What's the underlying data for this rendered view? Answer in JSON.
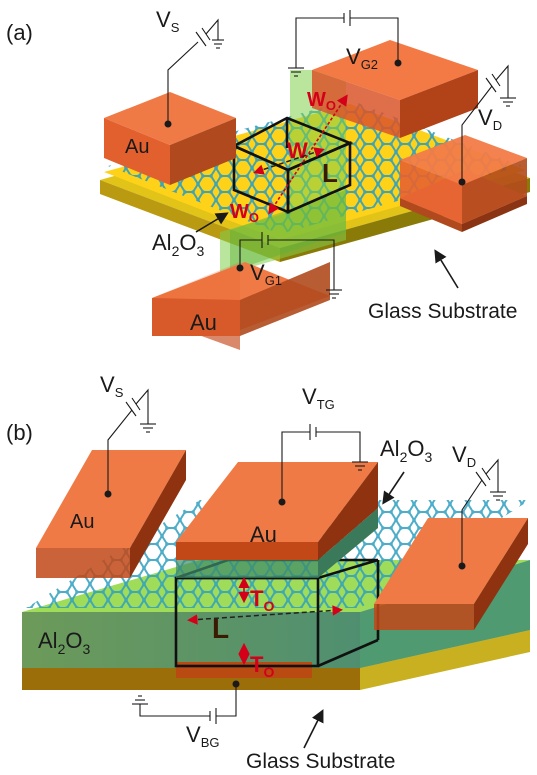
{
  "panel_a": {
    "tag": "(a)",
    "source": {
      "base": "V",
      "sub": "S"
    },
    "gate2": {
      "base": "V",
      "sub": "G2"
    },
    "drain": {
      "base": "V",
      "sub": "D"
    },
    "gate1": {
      "base": "V",
      "sub": "G1"
    },
    "pad_left": "Au",
    "pad_bottom": "Au",
    "oxide": {
      "base": "Al",
      "sub": "2",
      "tail": "O",
      "sub2": "3"
    },
    "substrate": "Glass Substrate",
    "dim_w": "W",
    "dim_wo": {
      "base": "W",
      "sub": "O"
    },
    "dim_l": "L"
  },
  "panel_b": {
    "tag": "(b)",
    "source": {
      "base": "V",
      "sub": "S"
    },
    "top_gate": {
      "base": "V",
      "sub": "TG"
    },
    "drain": {
      "base": "V",
      "sub": "D"
    },
    "back_gate": {
      "base": "V",
      "sub": "BG"
    },
    "pad_left": "Au",
    "pad_top": "Au",
    "oxide_top": {
      "base": "Al",
      "sub": "2",
      "tail": "O",
      "sub2": "3"
    },
    "oxide_side": {
      "base": "Al",
      "sub": "2",
      "tail": "O",
      "sub2": "3"
    },
    "substrate": "Glass Substrate",
    "dim_to": {
      "base": "T",
      "sub": "O"
    },
    "dim_to_bottom": {
      "base": "T",
      "sub": "O"
    },
    "dim_l": "L"
  },
  "colors": {
    "gold_pad": "#e8632e",
    "gold_pad_top": "#f07845",
    "gold_pad_dark": "#a8401a",
    "yellow_layer": "#ffd21a",
    "green_oxide": "#8cd04c",
    "teal_oxide": "#3f8a6a",
    "glass": "#b8a020",
    "graphene": "#3aa6c4",
    "dimension_red": "#d4001a"
  }
}
